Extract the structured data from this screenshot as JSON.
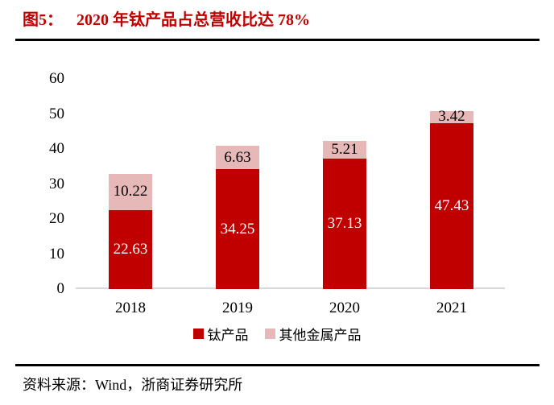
{
  "header": {
    "figure_label": "图5：",
    "title": "2020 年钛产品占总营收比达 78%"
  },
  "footer": {
    "source_text": "资料来源：Wind，浙商证券研究所"
  },
  "colors": {
    "title_red": "#c00000",
    "bar_titanium": "#c00000",
    "bar_other_metal": "#e6b9b8",
    "label_on_red": "#ffffff",
    "label_on_pink": "#000000",
    "axis_line": "#d9d9d9",
    "divider": "#000000",
    "text": "#000000"
  },
  "chart_data": {
    "type": "bar",
    "stacked": true,
    "title": "2020 年钛产品占总营收比达 78%",
    "categories": [
      "2018",
      "2019",
      "2020",
      "2021"
    ],
    "series": [
      {
        "name": "钛产品",
        "values": [
          22.63,
          34.25,
          37.13,
          47.43
        ],
        "color": "#c00000",
        "label_color": "#ffffff"
      },
      {
        "name": "其他金属产品",
        "values": [
          10.22,
          6.63,
          5.21,
          3.42
        ],
        "color": "#e6b9b8",
        "label_color": "#000000"
      }
    ],
    "xlabel": "",
    "ylabel": "",
    "ylim": [
      0,
      60
    ],
    "yticks": [
      0,
      10,
      20,
      30,
      40,
      50,
      60
    ],
    "grid": false,
    "legend_position": "bottom",
    "data_labels": true
  }
}
